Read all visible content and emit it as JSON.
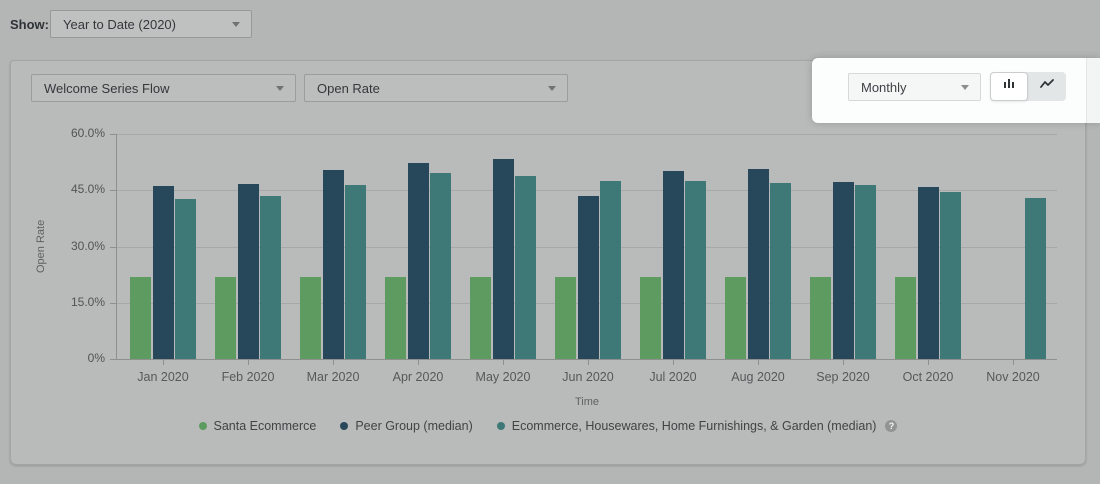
{
  "topbar": {
    "show_label": "Show:",
    "date_range_value": "Year to Date (2020)"
  },
  "card": {
    "flow_dropdown_value": "Welcome Series Flow",
    "metric_dropdown_value": "Open Rate",
    "interval_dropdown_value": "Monthly"
  },
  "legend": {
    "help_icon": "?"
  },
  "colors": {
    "santa_ecommerce": "#5d9b60",
    "peer_group": "#26485a",
    "ecommerce_category": "#3e7877",
    "spotlight_bg": "#fcfdfd"
  },
  "chart_data": {
    "type": "bar",
    "title": "",
    "xlabel": "Time",
    "ylabel": "Open Rate",
    "ylim": [
      0,
      60
    ],
    "grid": true,
    "legend_position": "bottom",
    "ytick_values": [
      0,
      15,
      30,
      45,
      60
    ],
    "ytick_labels": [
      "0%",
      "15.0%",
      "30.0%",
      "45.0%",
      "60.0%"
    ],
    "categories": [
      "Jan 2020",
      "Feb 2020",
      "Mar 2020",
      "Apr 2020",
      "May 2020",
      "Jun 2020",
      "Jul 2020",
      "Aug 2020",
      "Sep 2020",
      "Oct 2020",
      "Nov 2020"
    ],
    "series": [
      {
        "name": "Santa Ecommerce",
        "color": "#5d9b60",
        "values": [
          22,
          22,
          22,
          22,
          22,
          22,
          22,
          22,
          22,
          22,
          null
        ]
      },
      {
        "name": "Peer Group (median)",
        "color": "#26485a",
        "values": [
          46.2,
          46.6,
          50.4,
          52.4,
          53.3,
          43.4,
          50.1,
          50.6,
          47.2,
          45.8,
          null
        ]
      },
      {
        "name": "Ecommerce, Housewares, Home Furnishings, & Garden (median)",
        "color": "#3e7877",
        "values": [
          42.8,
          43.4,
          46.4,
          49.7,
          48.9,
          47.5,
          47.4,
          47.0,
          46.5,
          44.5,
          42.9
        ]
      }
    ]
  }
}
